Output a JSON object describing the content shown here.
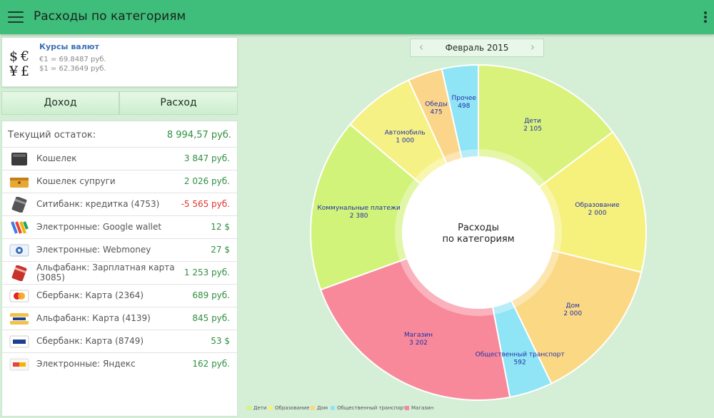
{
  "app_title": "Расходы по категориям",
  "rates": {
    "title": "Курсы валют",
    "eur": "€1 = 69.8487 руб.",
    "usd": "$1 = 62.3649 руб."
  },
  "tabs": {
    "income": "Доход",
    "expense": "Расход"
  },
  "balance": {
    "label": "Текущий остаток:",
    "value": "8 994,57 руб."
  },
  "accounts": [
    {
      "name": "Кошелек",
      "value": "3 847 руб.",
      "negative": false,
      "icon": "wallet-icon"
    },
    {
      "name": "Кошелек супруги",
      "value": "2 026 руб.",
      "negative": false,
      "icon": "purse-icon"
    },
    {
      "name": "Ситибанк: кредитка (4753)",
      "value": "-5 565 руб.",
      "negative": true,
      "icon": "credit-card-icon"
    },
    {
      "name": "Электронные: Google wallet",
      "value": "12 $",
      "negative": false,
      "icon": "google-wallet-icon"
    },
    {
      "name": "Электронные: Webmoney",
      "value": "27 $",
      "negative": false,
      "icon": "webmoney-icon"
    },
    {
      "name": "Альфабанк: Зарплатная карта (3085)",
      "value": "1 253 руб.",
      "negative": false,
      "icon": "alfabank-card-icon"
    },
    {
      "name": "Сбербанк: Карта (2364)",
      "value": "689 руб.",
      "negative": false,
      "icon": "mastercard-icon"
    },
    {
      "name": "Альфабанк: Карта (4139)",
      "value": "845 руб.",
      "negative": false,
      "icon": "visa-card-icon"
    },
    {
      "name": "Сбербанк: Карта (8749)",
      "value": "53 $",
      "negative": false,
      "icon": "visa-icon"
    },
    {
      "name": "Электронные: Яндекс",
      "value": "162 руб.",
      "negative": false,
      "icon": "yandex-money-icon"
    }
  ],
  "month": "Февраль 2015",
  "chart_data": {
    "type": "pie",
    "center_title": [
      "Расходы",
      "по категориям"
    ],
    "slices": [
      {
        "name": "Дети",
        "value": 2105,
        "label": "2 105",
        "color": "#d8f27c"
      },
      {
        "name": "Образование",
        "value": 2000,
        "label": "2 000",
        "color": "#f6f07c"
      },
      {
        "name": "Дом",
        "value": 2000,
        "label": "2 000",
        "color": "#fbd884"
      },
      {
        "name": "Общественный транспорт",
        "value": 592,
        "label": "592",
        "color": "#8fe4f5"
      },
      {
        "name": "Магазин",
        "value": 3202,
        "label": "3 202",
        "color": "#f7899a"
      },
      {
        "name": "Коммунальные платежи",
        "value": 2380,
        "label": "2 380",
        "color": "#d2f379"
      },
      {
        "name": "Автомобиль",
        "value": 1000,
        "label": "1 000",
        "color": "#f6f185"
      },
      {
        "name": "Обеды",
        "value": 475,
        "label": "475",
        "color": "#fbd68a"
      },
      {
        "name": "Прочее",
        "value": 498,
        "label": "498",
        "color": "#8fe4f5"
      }
    ],
    "legend": [
      {
        "name": "Дети",
        "color": "#d8f27c"
      },
      {
        "name": "Образование",
        "color": "#f6f07c"
      },
      {
        "name": "Дом",
        "color": "#fbd884"
      },
      {
        "name": "Общественный транспорт",
        "color": "#8fe4f5"
      },
      {
        "name": "Магазин",
        "color": "#f7899a"
      }
    ],
    "legend_position": "bottom-left"
  }
}
